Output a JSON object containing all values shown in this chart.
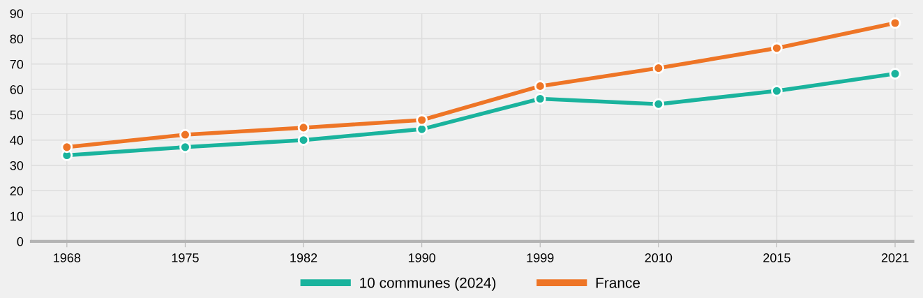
{
  "chart_data": {
    "type": "line",
    "categories": [
      "1968",
      "1975",
      "1982",
      "1990",
      "1999",
      "2010",
      "2015",
      "2021"
    ],
    "series": [
      {
        "name": "10 communes (2024)",
        "color": "#1ab39d",
        "values": [
          34,
          37.2,
          40,
          44.3,
          56.3,
          54.2,
          59.4,
          66.2
        ]
      },
      {
        "name": "France",
        "color": "#ee7526",
        "values": [
          37.2,
          42.1,
          44.9,
          47.9,
          61.3,
          68.4,
          76.3,
          86.2
        ]
      }
    ],
    "ylim": [
      0,
      90
    ],
    "yticks": [
      0,
      10,
      20,
      30,
      40,
      50,
      60,
      70,
      80,
      90
    ],
    "grid": true,
    "legend": "bottom",
    "marker": "circle",
    "line_style": "solid"
  }
}
